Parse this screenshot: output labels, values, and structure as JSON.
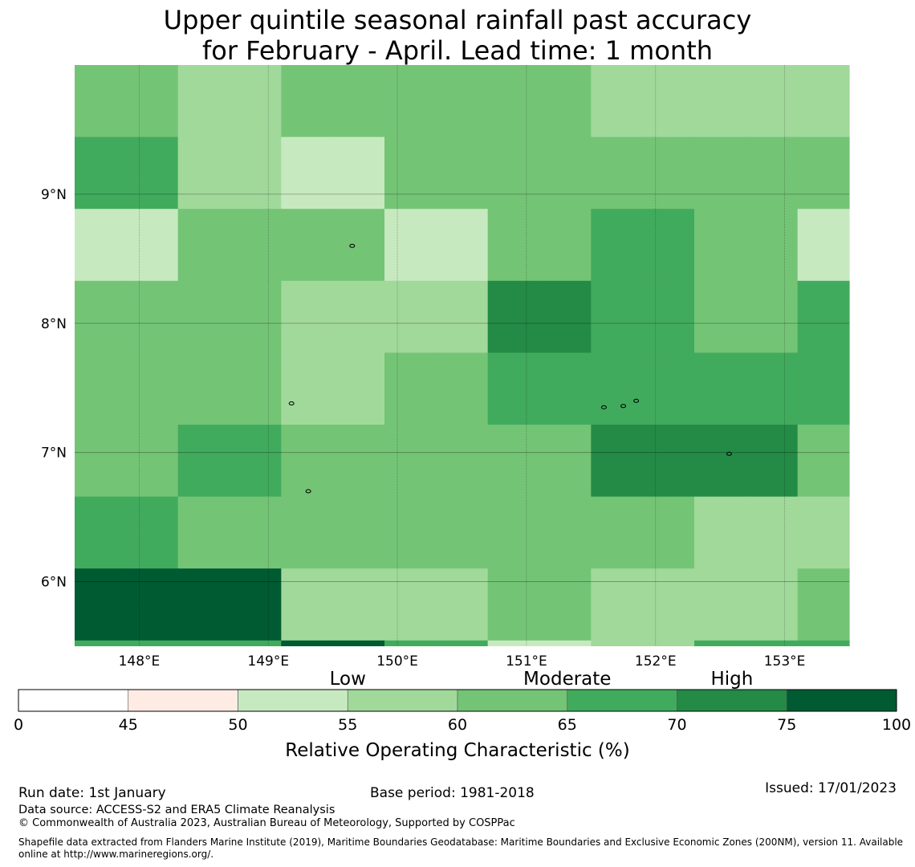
{
  "title": {
    "line1": "Upper quintile seasonal rainfall past accuracy",
    "line2": "for February - April. Lead time: 1 month"
  },
  "map": {
    "lon_range": [
      147.5,
      153.5
    ],
    "lat_range": [
      5.5,
      10.0
    ],
    "cell_size_deg": 0.833,
    "grid_rows_top_to_bottom": [
      [
        60,
        60,
        55,
        55,
        60,
        60,
        60,
        60,
        60,
        60,
        55,
        55,
        55,
        55,
        55
      ],
      [
        65,
        65,
        55,
        55,
        50,
        50,
        60,
        60,
        60,
        60,
        60,
        60,
        60,
        60,
        60
      ],
      [
        50,
        50,
        60,
        60,
        60,
        60,
        50,
        50,
        60,
        60,
        65,
        65,
        60,
        60,
        50
      ],
      [
        60,
        60,
        60,
        60,
        55,
        55,
        55,
        55,
        70,
        70,
        65,
        65,
        60,
        60,
        65
      ],
      [
        60,
        60,
        60,
        60,
        55,
        55,
        60,
        60,
        65,
        65,
        65,
        65,
        65,
        65,
        65
      ],
      [
        60,
        60,
        65,
        65,
        60,
        60,
        60,
        60,
        60,
        60,
        70,
        70,
        70,
        70,
        60
      ],
      [
        65,
        65,
        60,
        60,
        60,
        60,
        60,
        60,
        60,
        60,
        60,
        60,
        55,
        55,
        55
      ],
      [
        75,
        75,
        75,
        75,
        55,
        55,
        55,
        55,
        60,
        60,
        55,
        55,
        55,
        55,
        60
      ]
    ],
    "bottom_strip": [
      65,
      65,
      65,
      65,
      75,
      75,
      65,
      65,
      50,
      50,
      55,
      55,
      65,
      65,
      65
    ],
    "lat_labels": [
      {
        "value": 9,
        "text": "9°N"
      },
      {
        "value": 8,
        "text": "8°N"
      },
      {
        "value": 7,
        "text": "7°N"
      },
      {
        "value": 6,
        "text": "6°N"
      }
    ],
    "lon_labels": [
      {
        "value": 148,
        "text": "148°E"
      },
      {
        "value": 149,
        "text": "149°E"
      },
      {
        "value": 150,
        "text": "150°E"
      },
      {
        "value": 151,
        "text": "151°E"
      },
      {
        "value": 152,
        "text": "152°E"
      },
      {
        "value": 153,
        "text": "153°E"
      }
    ],
    "islands": [
      {
        "lon": 149.65,
        "lat": 8.6
      },
      {
        "lon": 149.18,
        "lat": 7.38
      },
      {
        "lon": 149.31,
        "lat": 6.7
      },
      {
        "lon": 151.6,
        "lat": 7.35
      },
      {
        "lon": 151.75,
        "lat": 7.36
      },
      {
        "lon": 151.85,
        "lat": 7.4
      },
      {
        "lon": 152.57,
        "lat": 6.99
      }
    ]
  },
  "legend": {
    "title": "Relative Operating Characteristic (%)",
    "categories": [
      {
        "label": "Low",
        "value": 55
      },
      {
        "label": "Moderate",
        "value": 65
      },
      {
        "label": "High",
        "value": 72.5
      }
    ],
    "bins": [
      {
        "from": 0,
        "to": 45,
        "color": "#ffffff"
      },
      {
        "from": 45,
        "to": 50,
        "color": "#fdebe4"
      },
      {
        "from": 50,
        "to": 55,
        "color": "#c7e9c0"
      },
      {
        "from": 55,
        "to": 60,
        "color": "#a1d99b"
      },
      {
        "from": 60,
        "to": 65,
        "color": "#74c476"
      },
      {
        "from": 65,
        "to": 70,
        "color": "#41ab5d"
      },
      {
        "from": 70,
        "to": 75,
        "color": "#238b45"
      },
      {
        "from": 75,
        "to": 100,
        "color": "#005a32"
      }
    ],
    "ticks": [
      "0",
      "45",
      "50",
      "55",
      "60",
      "65",
      "70",
      "75",
      "100"
    ]
  },
  "footer": {
    "run_date": "Run date: 1st January",
    "base_period": "Base period: 1981-2018",
    "issued": "Issued: 17/01/2023",
    "data_source": "Data source: ACCESS-S2 and ERA5 Climate Reanalysis",
    "copyright": "© Commonwealth of Australia 2023, Australian Bureau of Meteorology, Supported by COSPPac",
    "shapefile_line1": "Shapefile data extracted from Flanders Marine Institute (2019), Maritime Boundaries Geodatabase: Maritime Boundaries and Exclusive Economic Zones (200NM), version 11. Available",
    "shapefile_line2": "online at http://www.marineregions.org/."
  }
}
